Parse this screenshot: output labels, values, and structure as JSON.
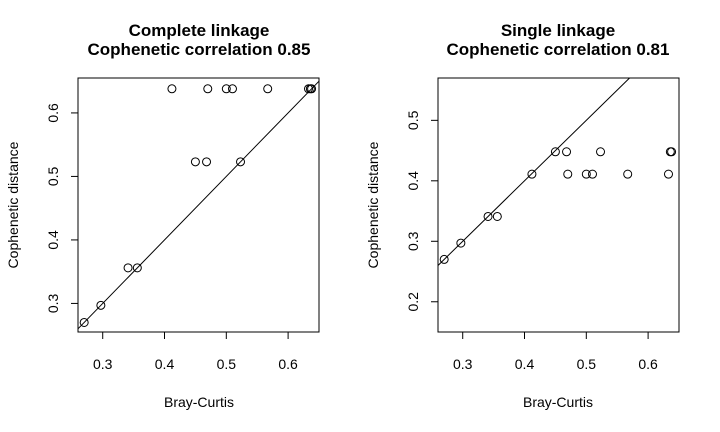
{
  "chart_data": [
    {
      "type": "scatter",
      "title": "Complete linkage",
      "subtitle": "Cophenetic correlation 0.85",
      "xlabel": "Bray-Curtis",
      "ylabel": "Cophenetic distance",
      "xlim": [
        0.26,
        0.65
      ],
      "ylim": [
        0.255,
        0.655
      ],
      "xticks": [
        0.3,
        0.4,
        0.5,
        0.6
      ],
      "yticks": [
        0.3,
        0.4,
        0.5,
        0.6
      ],
      "xtick_labels": [
        "0.3",
        "0.4",
        "0.5",
        "0.6"
      ],
      "ytick_labels": [
        "0.3",
        "0.4",
        "0.5",
        "0.6"
      ],
      "grid": false,
      "reference_line": {
        "type": "y=x"
      },
      "points": [
        {
          "x": 0.27,
          "y": 0.27
        },
        {
          "x": 0.297,
          "y": 0.297
        },
        {
          "x": 0.341,
          "y": 0.356
        },
        {
          "x": 0.356,
          "y": 0.356
        },
        {
          "x": 0.45,
          "y": 0.523
        },
        {
          "x": 0.468,
          "y": 0.523
        },
        {
          "x": 0.523,
          "y": 0.523
        },
        {
          "x": 0.412,
          "y": 0.638
        },
        {
          "x": 0.47,
          "y": 0.638
        },
        {
          "x": 0.5,
          "y": 0.638
        },
        {
          "x": 0.51,
          "y": 0.638
        },
        {
          "x": 0.567,
          "y": 0.638
        },
        {
          "x": 0.633,
          "y": 0.638
        },
        {
          "x": 0.636,
          "y": 0.638
        },
        {
          "x": 0.638,
          "y": 0.638
        }
      ]
    },
    {
      "type": "scatter",
      "title": "Single linkage",
      "subtitle": "Cophenetic correlation 0.81",
      "xlabel": "Bray-Curtis",
      "ylabel": "Cophenetic distance",
      "xlim": [
        0.26,
        0.65
      ],
      "ylim": [
        0.15,
        0.57
      ],
      "xticks": [
        0.3,
        0.4,
        0.5,
        0.6
      ],
      "yticks": [
        0.2,
        0.3,
        0.4,
        0.5
      ],
      "xtick_labels": [
        "0.3",
        "0.4",
        "0.5",
        "0.6"
      ],
      "ytick_labels": [
        "0.2",
        "0.3",
        "0.4",
        "0.5"
      ],
      "grid": false,
      "reference_line": {
        "type": "y=x"
      },
      "points": [
        {
          "x": 0.27,
          "y": 0.27
        },
        {
          "x": 0.297,
          "y": 0.297
        },
        {
          "x": 0.341,
          "y": 0.341
        },
        {
          "x": 0.356,
          "y": 0.341
        },
        {
          "x": 0.412,
          "y": 0.411
        },
        {
          "x": 0.45,
          "y": 0.448
        },
        {
          "x": 0.468,
          "y": 0.448
        },
        {
          "x": 0.47,
          "y": 0.411
        },
        {
          "x": 0.5,
          "y": 0.411
        },
        {
          "x": 0.51,
          "y": 0.411
        },
        {
          "x": 0.523,
          "y": 0.448
        },
        {
          "x": 0.567,
          "y": 0.411
        },
        {
          "x": 0.633,
          "y": 0.411
        },
        {
          "x": 0.636,
          "y": 0.448
        },
        {
          "x": 0.638,
          "y": 0.448
        }
      ]
    }
  ]
}
